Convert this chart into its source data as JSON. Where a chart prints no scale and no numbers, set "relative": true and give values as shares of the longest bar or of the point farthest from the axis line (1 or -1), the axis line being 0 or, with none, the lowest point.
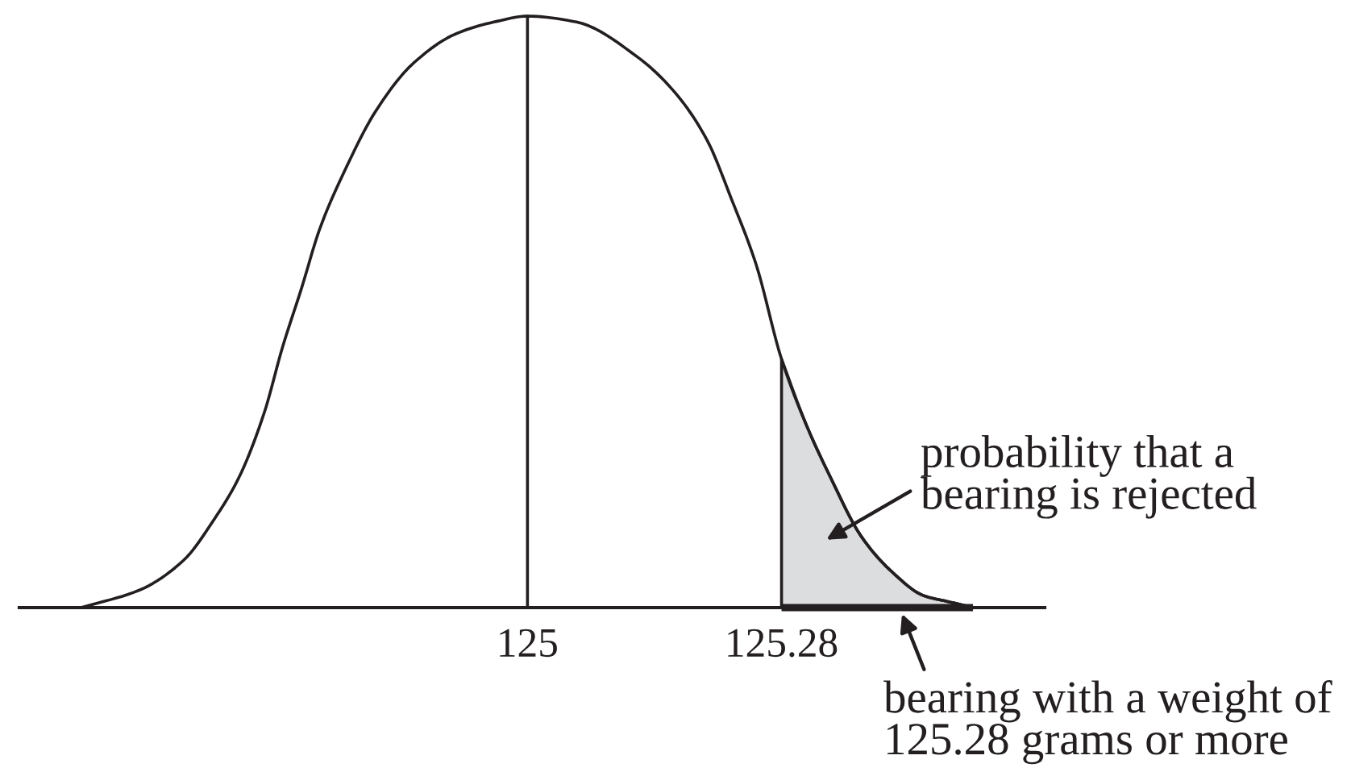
{
  "chart_data": {
    "type": "line",
    "relative": true,
    "xlim": [
      124.44,
      125.57
    ],
    "xticks": [
      125,
      125.28
    ],
    "series": [
      {
        "color": "#231f20",
        "x": [
          124.508,
          124.573,
          124.621,
          124.655,
          124.682,
          124.71,
          124.73,
          124.751,
          124.771,
          124.799,
          124.833,
          124.874,
          124.921,
          124.963,
          125.0,
          125.054,
          125.122,
          125.163,
          125.198,
          125.225,
          125.252,
          125.28,
          125.307,
          125.334,
          125.368,
          125.402,
          125.437,
          125.464,
          125.491
        ],
        "values": [
          0,
          0.03,
          0.08,
          0.15,
          0.22,
          0.33,
          0.44,
          0.54,
          0.64,
          0.74,
          0.84,
          0.92,
          0.97,
          0.99,
          1,
          0.99,
          0.93,
          0.87,
          0.79,
          0.69,
          0.58,
          0.42,
          0.31,
          0.22,
          0.12,
          0.06,
          0.02,
          0.01,
          0
        ]
      },
      {
        "type": "area",
        "color": "#dcdddf",
        "x": [
          125.28,
          125.307,
          125.334,
          125.368,
          125.402,
          125.437,
          125.464,
          125.491
        ],
        "values": [
          0.42,
          0.31,
          0.22,
          0.12,
          0.06,
          0.02,
          0.01,
          0
        ]
      }
    ],
    "ref_lines": [
      {
        "axis": "x",
        "value": 125,
        "color": "#231f20"
      }
    ],
    "annotations": [
      "probability that a\nbearing is rejected",
      {
        "text": "bearing with a weight of\n125.28 grams or more",
        "x": 125.41,
        "y": 0
      }
    ]
  }
}
